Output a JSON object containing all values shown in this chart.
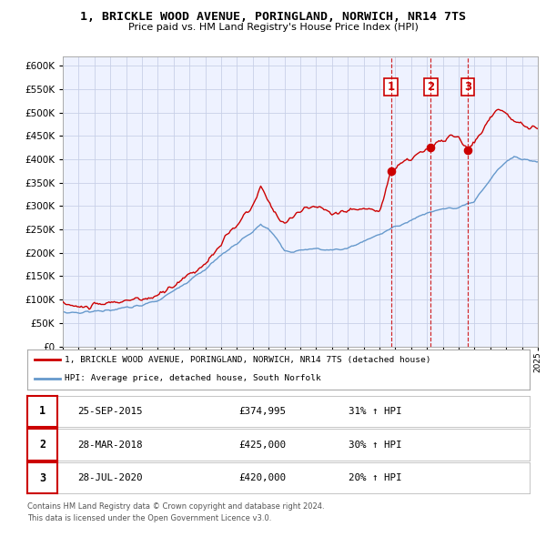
{
  "title": "1, BRICKLE WOOD AVENUE, PORINGLAND, NORWICH, NR14 7TS",
  "subtitle": "Price paid vs. HM Land Registry's House Price Index (HPI)",
  "red_label": "1, BRICKLE WOOD AVENUE, PORINGLAND, NORWICH, NR14 7TS (detached house)",
  "blue_label": "HPI: Average price, detached house, South Norfolk",
  "footer1": "Contains HM Land Registry data © Crown copyright and database right 2024.",
  "footer2": "This data is licensed under the Open Government Licence v3.0.",
  "red_color": "#cc0000",
  "blue_color": "#6699cc",
  "bg_color": "#eef2ff",
  "grid_color": "#c8d0e8",
  "sale_points": [
    {
      "num": 1,
      "year": 2015.73,
      "price": 374995,
      "label": "25-SEP-2015",
      "hpi_pct": "31%"
    },
    {
      "num": 2,
      "year": 2018.24,
      "price": 425000,
      "label": "28-MAR-2018",
      "hpi_pct": "30%"
    },
    {
      "num": 3,
      "year": 2020.57,
      "price": 420000,
      "label": "28-JUL-2020",
      "hpi_pct": "20%"
    }
  ],
  "xmin": 1995,
  "xmax": 2025,
  "ymin": 0,
  "ymax": 620000,
  "yticks": [
    0,
    50000,
    100000,
    150000,
    200000,
    250000,
    300000,
    350000,
    400000,
    450000,
    500000,
    550000,
    600000
  ],
  "red_segments": [
    [
      1995.0,
      93000
    ],
    [
      1996.0,
      83000
    ],
    [
      1997.0,
      87000
    ],
    [
      1998.0,
      93000
    ],
    [
      1999.0,
      98000
    ],
    [
      2000.0,
      100000
    ],
    [
      2001.0,
      108000
    ],
    [
      2002.0,
      130000
    ],
    [
      2003.0,
      155000
    ],
    [
      2004.0,
      175000
    ],
    [
      2005.0,
      220000
    ],
    [
      2006.0,
      260000
    ],
    [
      2007.0,
      300000
    ],
    [
      2007.5,
      340000
    ],
    [
      2008.0,
      310000
    ],
    [
      2008.5,
      280000
    ],
    [
      2009.0,
      265000
    ],
    [
      2009.5,
      275000
    ],
    [
      2010.0,
      290000
    ],
    [
      2011.0,
      300000
    ],
    [
      2012.0,
      285000
    ],
    [
      2013.0,
      290000
    ],
    [
      2014.0,
      295000
    ],
    [
      2015.0,
      290000
    ],
    [
      2015.73,
      374995
    ],
    [
      2016.0,
      380000
    ],
    [
      2016.5,
      395000
    ],
    [
      2017.0,
      400000
    ],
    [
      2017.5,
      415000
    ],
    [
      2018.24,
      425000
    ],
    [
      2018.5,
      430000
    ],
    [
      2019.0,
      440000
    ],
    [
      2019.5,
      450000
    ],
    [
      2020.0,
      445000
    ],
    [
      2020.57,
      420000
    ],
    [
      2021.0,
      435000
    ],
    [
      2021.5,
      460000
    ],
    [
      2022.0,
      490000
    ],
    [
      2022.5,
      510000
    ],
    [
      2023.0,
      495000
    ],
    [
      2023.5,
      480000
    ],
    [
      2024.0,
      475000
    ],
    [
      2024.5,
      468000
    ],
    [
      2025.0,
      465000
    ]
  ],
  "blue_segments": [
    [
      1995.0,
      73000
    ],
    [
      1996.0,
      72000
    ],
    [
      1997.0,
      75000
    ],
    [
      1998.0,
      78000
    ],
    [
      1999.0,
      82000
    ],
    [
      2000.0,
      88000
    ],
    [
      2001.0,
      98000
    ],
    [
      2002.0,
      118000
    ],
    [
      2003.0,
      142000
    ],
    [
      2004.0,
      165000
    ],
    [
      2005.0,
      195000
    ],
    [
      2006.0,
      220000
    ],
    [
      2007.0,
      245000
    ],
    [
      2007.5,
      260000
    ],
    [
      2008.0,
      250000
    ],
    [
      2008.5,
      230000
    ],
    [
      2009.0,
      205000
    ],
    [
      2009.5,
      200000
    ],
    [
      2010.0,
      205000
    ],
    [
      2011.0,
      210000
    ],
    [
      2012.0,
      205000
    ],
    [
      2013.0,
      210000
    ],
    [
      2014.0,
      225000
    ],
    [
      2015.0,
      240000
    ],
    [
      2016.0,
      255000
    ],
    [
      2017.0,
      270000
    ],
    [
      2018.0,
      285000
    ],
    [
      2019.0,
      295000
    ],
    [
      2020.0,
      295000
    ],
    [
      2021.0,
      310000
    ],
    [
      2022.0,
      355000
    ],
    [
      2022.5,
      380000
    ],
    [
      2023.0,
      395000
    ],
    [
      2023.5,
      405000
    ],
    [
      2024.0,
      400000
    ],
    [
      2025.0,
      395000
    ]
  ],
  "table_entries": [
    {
      "num": "1",
      "date": "25-SEP-2015",
      "price": "£374,995",
      "hpi": "31% ↑ HPI"
    },
    {
      "num": "2",
      "date": "28-MAR-2018",
      "price": "£425,000",
      "hpi": "30% ↑ HPI"
    },
    {
      "num": "3",
      "date": "28-JUL-2020",
      "price": "£420,000",
      "hpi": "20% ↑ HPI"
    }
  ]
}
